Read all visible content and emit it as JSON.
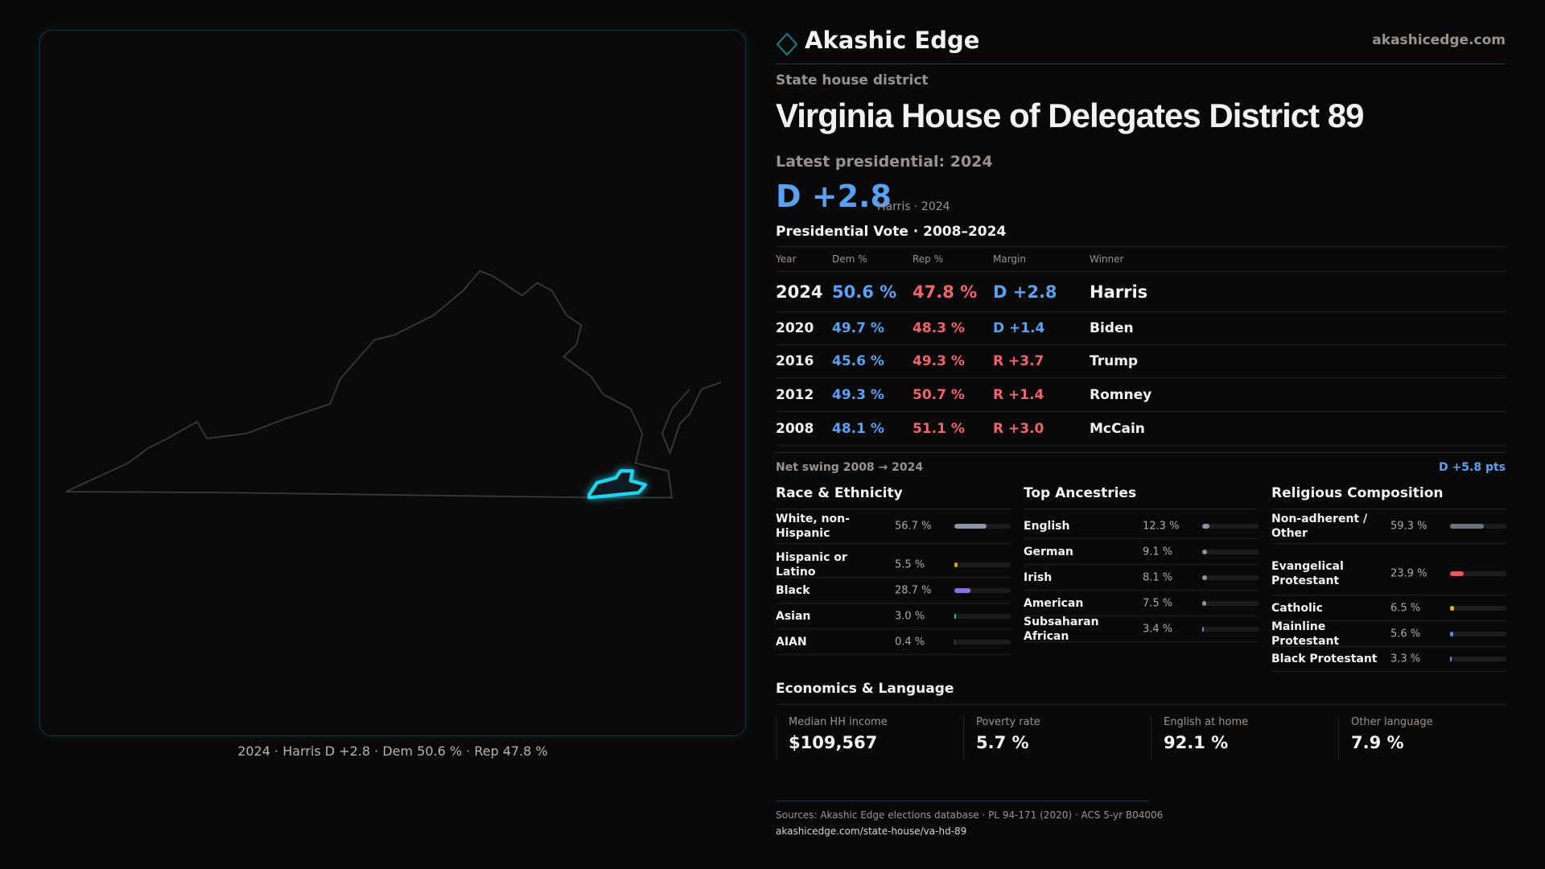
{
  "map": {
    "caption": "2024 · Harris D +2.8 · Dem 50.6 % · Rep 47.8 %",
    "highlight_color": "#22d3ee"
  },
  "header": {
    "brand": "Akashic Edge",
    "site": "akashicedge.com",
    "logo_icon": "diamond-icon"
  },
  "district": {
    "kind": "State house district",
    "title": "Virginia House of Delegates District 89",
    "latest_label": "Latest presidential: 2024",
    "margin": "D +2.8",
    "margin_sub": "Harris · 2024"
  },
  "colors": {
    "dem": "#59a2f2",
    "rep": "#f0646c"
  },
  "pres": {
    "title": "Presidential Vote · 2008–2024",
    "headers": [
      "Year",
      "Dem %",
      "Rep %",
      "Margin",
      "Winner"
    ],
    "rows": [
      {
        "year": "2024",
        "dem": "50.6 %",
        "rep": "47.8 %",
        "margin": "D +2.8",
        "party": "D",
        "winner": "Harris"
      },
      {
        "year": "2020",
        "dem": "49.7 %",
        "rep": "48.3 %",
        "margin": "D +1.4",
        "party": "D",
        "winner": "Biden"
      },
      {
        "year": "2016",
        "dem": "45.6 %",
        "rep": "49.3 %",
        "margin": "R +3.7",
        "party": "R",
        "winner": "Trump"
      },
      {
        "year": "2012",
        "dem": "49.3 %",
        "rep": "50.7 %",
        "margin": "R +1.4",
        "party": "R",
        "winner": "Romney"
      },
      {
        "year": "2008",
        "dem": "48.1 %",
        "rep": "51.1 %",
        "margin": "R +3.0",
        "party": "R",
        "winner": "McCain"
      }
    ],
    "swing_label": "Net swing 2008 → 2024",
    "swing_value": "D +5.8 pts"
  },
  "sections": [
    {
      "title": "Race & Ethnicity",
      "items": [
        {
          "label": "White, non-Hispanic",
          "value": "56.7 %",
          "pct": 56.7,
          "color": "#8a94a6"
        },
        {
          "label": "Hispanic or Latino",
          "value": "5.5 %",
          "pct": 5.5,
          "color": "#e0a020"
        },
        {
          "label": "Black",
          "value": "28.7 %",
          "pct": 28.7,
          "color": "#8f6fe0"
        },
        {
          "label": "Asian",
          "value": "3.0 %",
          "pct": 3.0,
          "color": "#3cbf8f"
        },
        {
          "label": "AIAN",
          "value": "0.4 %",
          "pct": 0.4,
          "color": "#555"
        }
      ]
    },
    {
      "title": "Top Ancestries",
      "items": [
        {
          "label": "English",
          "value": "12.3 %",
          "pct": 12.3,
          "color": "#8a94a6"
        },
        {
          "label": "German",
          "value": "9.1 %",
          "pct": 9.1,
          "color": "#8a94a6"
        },
        {
          "label": "Irish",
          "value": "8.1 %",
          "pct": 8.1,
          "color": "#8a94a6"
        },
        {
          "label": "American",
          "value": "7.5 %",
          "pct": 7.5,
          "color": "#8a94a6"
        },
        {
          "label": "Subsaharan African",
          "value": "3.4 %",
          "pct": 3.4,
          "color": "#8f6fe0"
        }
      ]
    },
    {
      "title": "Religious Composition",
      "items": [
        {
          "label": "Non-adherent / Other",
          "value": "59.3 %",
          "pct": 59.3,
          "color": "#6b7280"
        },
        {
          "label": "Evangelical Protestant",
          "value": "23.9 %",
          "pct": 23.9,
          "color": "#e05a5a"
        },
        {
          "label": "Catholic",
          "value": "6.5 %",
          "pct": 6.5,
          "color": "#e6b422"
        },
        {
          "label": "Mainline Protestant",
          "value": "5.6 %",
          "pct": 5.6,
          "color": "#4a90e2"
        },
        {
          "label": "Black Protestant",
          "value": "3.3 %",
          "pct": 3.3,
          "color": "#8f6fe0"
        }
      ]
    }
  ],
  "econ": {
    "title": "Economics & Language",
    "items": [
      {
        "label": "Median HH income",
        "value": "$109,567"
      },
      {
        "label": "Poverty rate",
        "value": "5.7 %"
      },
      {
        "label": "English at home",
        "value": "92.1 %"
      },
      {
        "label": "Other language",
        "value": "7.9 %"
      }
    ]
  },
  "footer": {
    "sources": "Sources: Akashic Edge elections database · PL 94-171 (2020) · ACS 5-yr B04006",
    "url": "akashicedge.com/state-house/va-hd-89"
  }
}
